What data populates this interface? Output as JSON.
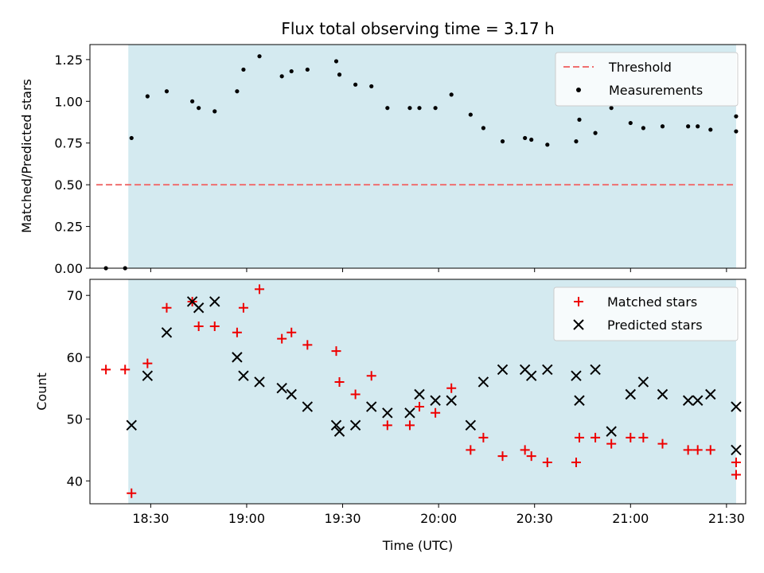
{
  "chart_data": [
    {
      "type": "scatter",
      "title": "Flux total observing time = 3.17 h",
      "ylabel": "Matched/Predicted stars",
      "xlabel": "",
      "xlim": [
        "18:11",
        "21:36"
      ],
      "ylim": [
        0,
        1.34
      ],
      "yticks": [
        "0.00",
        "0.25",
        "0.50",
        "0.75",
        "1.00",
        "1.25"
      ],
      "shaded_span": [
        "18:23",
        "21:33"
      ],
      "shade_color": "#d4eaf0",
      "threshold": {
        "name": "Threshold",
        "value": 0.5,
        "x_range": [
          "18:13",
          "21:33"
        ],
        "color": "#f06f6f"
      },
      "series": [
        {
          "name": "Measurements",
          "marker": "dot",
          "color": "#000000",
          "points": [
            [
              "18:16",
              0.0
            ],
            [
              "18:22",
              0.0
            ],
            [
              "18:24",
              0.78
            ],
            [
              "18:29",
              1.03
            ],
            [
              "18:35",
              1.06
            ],
            [
              "18:43",
              1.0
            ],
            [
              "18:45",
              0.96
            ],
            [
              "18:50",
              0.94
            ],
            [
              "18:57",
              1.06
            ],
            [
              "18:59",
              1.19
            ],
            [
              "19:04",
              1.27
            ],
            [
              "19:11",
              1.15
            ],
            [
              "19:14",
              1.18
            ],
            [
              "19:19",
              1.19
            ],
            [
              "19:28",
              1.24
            ],
            [
              "19:29",
              1.16
            ],
            [
              "19:34",
              1.1
            ],
            [
              "19:39",
              1.09
            ],
            [
              "19:44",
              0.96
            ],
            [
              "19:51",
              0.96
            ],
            [
              "19:54",
              0.96
            ],
            [
              "19:59",
              0.96
            ],
            [
              "20:04",
              1.04
            ],
            [
              "20:10",
              0.92
            ],
            [
              "20:14",
              0.84
            ],
            [
              "20:20",
              0.76
            ],
            [
              "20:27",
              0.78
            ],
            [
              "20:29",
              0.77
            ],
            [
              "20:34",
              0.74
            ],
            [
              "20:43",
              0.76
            ],
            [
              "20:44",
              0.89
            ],
            [
              "20:49",
              0.81
            ],
            [
              "20:54",
              0.96
            ],
            [
              "21:00",
              0.87
            ],
            [
              "21:04",
              0.84
            ],
            [
              "21:10",
              0.85
            ],
            [
              "21:18",
              0.85
            ],
            [
              "21:21",
              0.85
            ],
            [
              "21:25",
              0.83
            ],
            [
              "21:33",
              0.91
            ],
            [
              "21:33",
              0.82
            ]
          ]
        }
      ],
      "legend": {
        "placement": "top-right",
        "entries": [
          "Threshold",
          "Measurements"
        ]
      }
    },
    {
      "type": "scatter",
      "title": "",
      "xlabel": "Time (UTC)",
      "ylabel": "Count",
      "xlim": [
        "18:11",
        "21:36"
      ],
      "ylim": [
        36.3,
        72.6
      ],
      "yticks": [
        "40",
        "50",
        "60",
        "70"
      ],
      "xticks": [
        "18:30",
        "19:00",
        "19:30",
        "20:00",
        "20:30",
        "21:00",
        "21:30"
      ],
      "shaded_span": [
        "18:23",
        "21:33"
      ],
      "shade_color": "#d4eaf0",
      "series": [
        {
          "name": "Matched stars",
          "marker": "plus",
          "color": "#ee0000",
          "points": [
            [
              "18:16",
              58
            ],
            [
              "18:22",
              58
            ],
            [
              "18:24",
              38
            ],
            [
              "18:29",
              59
            ],
            [
              "18:35",
              68
            ],
            [
              "18:43",
              69
            ],
            [
              "18:45",
              65
            ],
            [
              "18:50",
              65
            ],
            [
              "18:57",
              64
            ],
            [
              "18:59",
              68
            ],
            [
              "19:04",
              71
            ],
            [
              "19:11",
              63
            ],
            [
              "19:14",
              64
            ],
            [
              "19:19",
              62
            ],
            [
              "19:28",
              61
            ],
            [
              "19:29",
              56
            ],
            [
              "19:34",
              54
            ],
            [
              "19:39",
              57
            ],
            [
              "19:44",
              49
            ],
            [
              "19:51",
              49
            ],
            [
              "19:54",
              52
            ],
            [
              "19:59",
              51
            ],
            [
              "20:04",
              55
            ],
            [
              "20:10",
              45
            ],
            [
              "20:14",
              47
            ],
            [
              "20:20",
              44
            ],
            [
              "20:27",
              45
            ],
            [
              "20:29",
              44
            ],
            [
              "20:34",
              43
            ],
            [
              "20:43",
              43
            ],
            [
              "20:44",
              47
            ],
            [
              "20:49",
              47
            ],
            [
              "20:54",
              46
            ],
            [
              "21:00",
              47
            ],
            [
              "21:04",
              47
            ],
            [
              "21:10",
              46
            ],
            [
              "21:18",
              45
            ],
            [
              "21:21",
              45
            ],
            [
              "21:25",
              45
            ],
            [
              "21:33",
              41
            ],
            [
              "21:33",
              43
            ]
          ]
        },
        {
          "name": "Predicted stars",
          "marker": "x",
          "color": "#000000",
          "points": [
            [
              "18:24",
              49
            ],
            [
              "18:29",
              57
            ],
            [
              "18:35",
              64
            ],
            [
              "18:43",
              69
            ],
            [
              "18:45",
              68
            ],
            [
              "18:50",
              69
            ],
            [
              "18:57",
              60
            ],
            [
              "18:59",
              57
            ],
            [
              "19:04",
              56
            ],
            [
              "19:11",
              55
            ],
            [
              "19:14",
              54
            ],
            [
              "19:19",
              52
            ],
            [
              "19:28",
              49
            ],
            [
              "19:29",
              48
            ],
            [
              "19:34",
              49
            ],
            [
              "19:39",
              52
            ],
            [
              "19:44",
              51
            ],
            [
              "19:51",
              51
            ],
            [
              "19:54",
              54
            ],
            [
              "19:59",
              53
            ],
            [
              "20:04",
              53
            ],
            [
              "20:10",
              49
            ],
            [
              "20:14",
              56
            ],
            [
              "20:20",
              58
            ],
            [
              "20:27",
              58
            ],
            [
              "20:29",
              57
            ],
            [
              "20:34",
              58
            ],
            [
              "20:43",
              57
            ],
            [
              "20:44",
              53
            ],
            [
              "20:49",
              58
            ],
            [
              "20:54",
              48
            ],
            [
              "21:00",
              54
            ],
            [
              "21:04",
              56
            ],
            [
              "21:10",
              54
            ],
            [
              "21:18",
              53
            ],
            [
              "21:21",
              53
            ],
            [
              "21:25",
              54
            ],
            [
              "21:33",
              45
            ],
            [
              "21:33",
              52
            ]
          ]
        }
      ],
      "legend": {
        "placement": "top-right",
        "entries": [
          "Matched stars",
          "Predicted stars"
        ]
      }
    }
  ]
}
